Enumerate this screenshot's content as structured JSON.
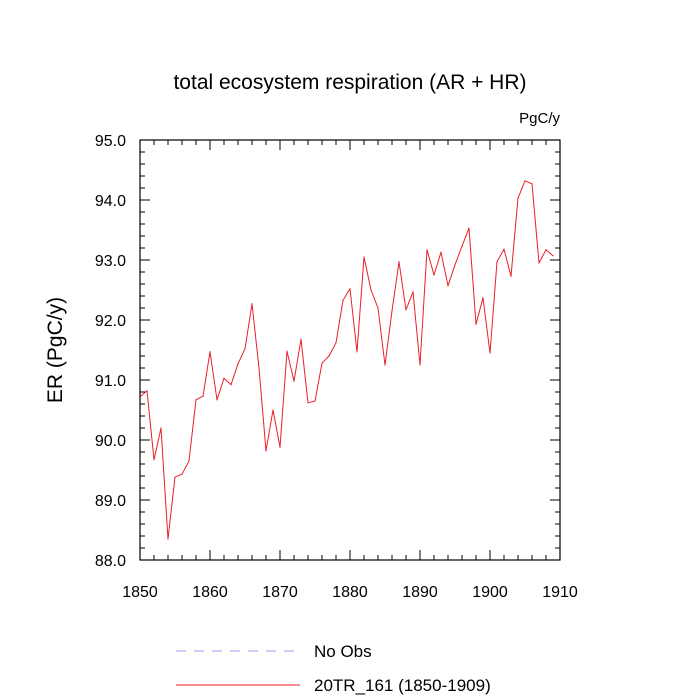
{
  "chart_data": {
    "type": "line",
    "title": "total ecosystem respiration (AR + HR)",
    "units": "PgC/y",
    "xlabel": "",
    "ylabel": "ER  (PgC/y)",
    "xlim": [
      1850,
      1910
    ],
    "ylim": [
      88.0,
      95.0
    ],
    "xticks": [
      1850,
      1860,
      1870,
      1880,
      1890,
      1900,
      1910
    ],
    "yticks": [
      88.0,
      89.0,
      90.0,
      91.0,
      92.0,
      93.0,
      94.0,
      95.0
    ],
    "ytick_labels": [
      "88.0",
      "89.0",
      "90.0",
      "91.0",
      "92.0",
      "93.0",
      "94.0",
      "95.0"
    ],
    "series": [
      {
        "name": "20TR_161 (1850-1909)",
        "color": "#e8202a",
        "style": "solid",
        "x": [
          1850,
          1851,
          1852,
          1853,
          1854,
          1855,
          1856,
          1857,
          1858,
          1859,
          1860,
          1861,
          1862,
          1863,
          1864,
          1865,
          1866,
          1867,
          1868,
          1869,
          1870,
          1871,
          1872,
          1873,
          1874,
          1875,
          1876,
          1877,
          1878,
          1879,
          1880,
          1881,
          1882,
          1883,
          1884,
          1885,
          1886,
          1887,
          1888,
          1889,
          1890,
          1891,
          1892,
          1893,
          1894,
          1895,
          1896,
          1897,
          1898,
          1899,
          1900,
          1901,
          1902,
          1903,
          1904,
          1905,
          1906,
          1907,
          1908,
          1909
        ],
        "values": [
          90.72,
          90.82,
          89.67,
          90.2,
          88.35,
          89.38,
          89.43,
          89.65,
          90.67,
          90.73,
          91.47,
          90.67,
          91.03,
          90.92,
          91.27,
          91.52,
          92.27,
          91.2,
          89.82,
          90.5,
          89.88,
          91.48,
          90.98,
          91.68,
          90.62,
          90.65,
          91.28,
          91.4,
          91.62,
          92.33,
          92.52,
          91.47,
          93.05,
          92.5,
          92.2,
          91.25,
          92.15,
          92.97,
          92.17,
          92.47,
          91.25,
          93.17,
          92.75,
          93.13,
          92.57,
          92.92,
          93.23,
          93.53,
          91.93,
          92.37,
          91.45,
          92.97,
          93.18,
          92.73,
          94.03,
          94.32,
          94.27,
          92.95,
          93.17,
          93.07
        ]
      }
    ],
    "legend": [
      {
        "label": "No Obs",
        "color": "#9aa0ee",
        "style": "dashed"
      },
      {
        "label": "20TR_161 (1850-1909)",
        "color": "#e8202a",
        "style": "solid"
      }
    ],
    "grid": false
  }
}
